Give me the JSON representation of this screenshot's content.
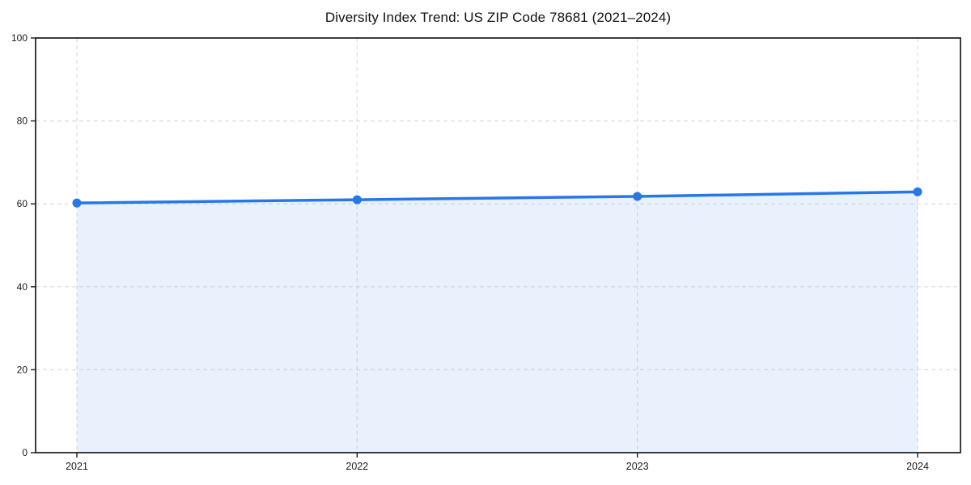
{
  "page": {
    "background": "#ffffff"
  },
  "chart_data": {
    "type": "area",
    "title": "Diversity Index Trend: US ZIP Code 78681 (2021–2024)",
    "series_name": "Diversity Index",
    "categories": [
      "2021",
      "2022",
      "2023",
      "2024"
    ],
    "values": [
      60.2,
      61.0,
      61.8,
      62.9
    ],
    "xlabel": "",
    "ylabel": "",
    "ylim": [
      0,
      100
    ],
    "yticks": [
      0,
      20,
      40,
      60,
      80,
      100
    ],
    "grid": "dashed",
    "legend_position": "none",
    "marker": "circle",
    "colors": {
      "line": "#2777e8",
      "marker": "#2777e8",
      "fill": "#2777e8",
      "fill_opacity": 0.1,
      "grid": "#dedede",
      "axis": "#1a1a1a",
      "text": "#1a1a1a",
      "background": "#ffffff"
    }
  }
}
